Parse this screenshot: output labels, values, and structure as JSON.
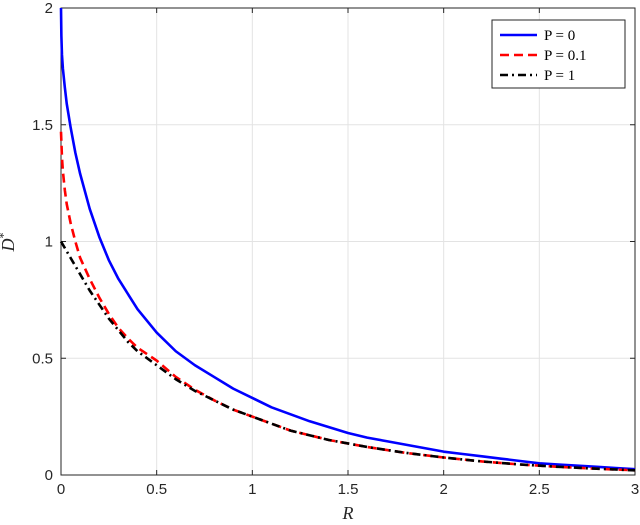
{
  "chart_data": {
    "type": "line",
    "xlabel": "R",
    "ylabel": "D",
    "ylabel_superscript": "*",
    "xlim": [
      0,
      3
    ],
    "ylim": [
      0,
      2
    ],
    "xticks": [
      0,
      0.5,
      1,
      1.5,
      2,
      2.5,
      3
    ],
    "xtick_labels": [
      "0",
      "0.5",
      "1",
      "1.5",
      "2",
      "2.5",
      "3"
    ],
    "yticks": [
      0,
      0.5,
      1,
      1.5,
      2
    ],
    "ytick_labels": [
      "0",
      "0.5",
      "1",
      "1.5",
      "2"
    ],
    "grid": true,
    "legend_position": "top-right",
    "series": [
      {
        "name": "P = 0",
        "color": "#0000ff",
        "style": "solid",
        "x": [
          0,
          0.002,
          0.005,
          0.01,
          0.02,
          0.03,
          0.05,
          0.075,
          0.1,
          0.15,
          0.2,
          0.25,
          0.3,
          0.4,
          0.5,
          0.6,
          0.7,
          0.8,
          0.9,
          1.0,
          1.1,
          1.2,
          1.3,
          1.4,
          1.5,
          1.6,
          1.7,
          1.8,
          1.9,
          2.0,
          2.1,
          2.2,
          2.3,
          2.4,
          2.5,
          2.6,
          2.7,
          2.8,
          2.9,
          3.0
        ],
        "y": [
          2.0,
          1.88,
          1.8,
          1.74,
          1.66,
          1.59,
          1.49,
          1.38,
          1.29,
          1.14,
          1.02,
          0.92,
          0.84,
          0.71,
          0.61,
          0.53,
          0.47,
          0.42,
          0.37,
          0.33,
          0.29,
          0.26,
          0.23,
          0.205,
          0.18,
          0.16,
          0.145,
          0.13,
          0.115,
          0.1,
          0.09,
          0.08,
          0.07,
          0.06,
          0.05,
          0.045,
          0.04,
          0.035,
          0.03,
          0.025
        ]
      },
      {
        "name": "P = 0.1",
        "color": "#ff0000",
        "style": "dashed",
        "x": [
          0,
          0.005,
          0.01,
          0.02,
          0.03,
          0.05,
          0.075,
          0.1,
          0.15,
          0.2,
          0.25,
          0.3,
          0.35,
          0.4,
          0.5,
          0.6,
          0.7,
          0.8,
          0.9,
          1.0,
          1.2,
          1.4,
          1.6,
          1.8,
          2.0,
          2.2,
          2.4,
          2.6,
          2.8,
          3.0
        ],
        "y": [
          1.47,
          1.36,
          1.3,
          1.22,
          1.16,
          1.08,
          1.0,
          0.93,
          0.84,
          0.76,
          0.69,
          0.63,
          0.585,
          0.545,
          0.49,
          0.42,
          0.365,
          0.32,
          0.28,
          0.25,
          0.19,
          0.15,
          0.12,
          0.095,
          0.075,
          0.058,
          0.045,
          0.035,
          0.027,
          0.02
        ]
      },
      {
        "name": "P = 1",
        "color": "#000000",
        "style": "dashdot",
        "x": [
          0,
          0.05,
          0.1,
          0.15,
          0.2,
          0.25,
          0.3,
          0.35,
          0.4,
          0.5,
          0.6,
          0.7,
          0.8,
          0.9,
          1.0,
          1.2,
          1.4,
          1.6,
          1.8,
          2.0,
          2.2,
          2.4,
          2.6,
          2.8,
          3.0
        ],
        "y": [
          1.0,
          0.93,
          0.86,
          0.79,
          0.73,
          0.67,
          0.62,
          0.57,
          0.53,
          0.47,
          0.41,
          0.36,
          0.32,
          0.28,
          0.25,
          0.19,
          0.15,
          0.12,
          0.095,
          0.075,
          0.058,
          0.045,
          0.035,
          0.027,
          0.02
        ]
      }
    ]
  }
}
